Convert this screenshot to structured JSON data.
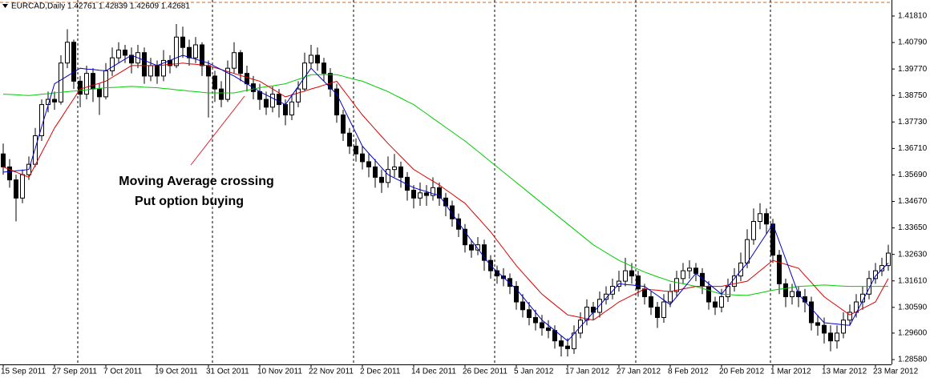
{
  "chart_data": {
    "type": "candlestick",
    "title": "EURCAD,Daily  1.42761 1.42839 1.42609 1.42681",
    "annotations": [
      "Moving Average crossing",
      "Put option buying"
    ],
    "annotation_color": "#e0262c",
    "up_color": "#ffffff",
    "down_color": "#000000",
    "categories": [
      "15 Sep 2011",
      null,
      null,
      null,
      null,
      null,
      null,
      null,
      "27 Sep 2011",
      null,
      null,
      null,
      null,
      null,
      null,
      null,
      "7 Oct 2011",
      null,
      null,
      null,
      null,
      null,
      null,
      null,
      "19 Oct 2011",
      null,
      null,
      null,
      null,
      null,
      null,
      null,
      "31 Oct 2011",
      null,
      null,
      null,
      null,
      null,
      null,
      null,
      "10 Nov 2011",
      null,
      null,
      null,
      null,
      null,
      null,
      null,
      "22 Nov 2011",
      null,
      null,
      null,
      null,
      null,
      null,
      null,
      "2 Dec 2011",
      null,
      null,
      null,
      null,
      null,
      null,
      null,
      "14 Dec 2011",
      null,
      null,
      null,
      null,
      null,
      null,
      null,
      "26 Dec 2011",
      null,
      null,
      null,
      null,
      null,
      null,
      null,
      "5 Jan 2012",
      null,
      null,
      null,
      null,
      null,
      null,
      null,
      "17 Jan 2012",
      null,
      null,
      null,
      null,
      null,
      null,
      null,
      "27 Jan 2012",
      null,
      null,
      null,
      null,
      null,
      null,
      null,
      "8 Feb 2012",
      null,
      null,
      null,
      null,
      null,
      null,
      null,
      "20 Feb 2012",
      null,
      null,
      null,
      null,
      null,
      null,
      null,
      "1 Mar 2012",
      null,
      null,
      null,
      null,
      null,
      null,
      null,
      "13 Mar 2012",
      null,
      null,
      null,
      null,
      null,
      null,
      null,
      "23 Mar 2012",
      null,
      null
    ],
    "open": [
      1.365,
      1.36,
      1.355,
      1.348,
      1.357,
      1.361,
      1.372,
      1.384,
      1.386,
      1.385,
      1.4,
      1.408,
      1.393,
      1.388,
      1.396,
      1.39,
      1.387,
      1.397,
      1.402,
      1.405,
      1.403,
      1.4,
      1.404,
      1.395,
      1.399,
      1.395,
      1.401,
      1.399,
      1.41,
      1.406,
      1.402,
      1.407,
      1.399,
      1.395,
      1.39,
      1.386,
      1.398,
      1.404,
      1.396,
      1.392,
      1.389,
      1.386,
      1.383,
      1.388,
      1.384,
      1.38,
      1.385,
      1.39,
      1.4,
      1.403,
      1.4,
      1.396,
      1.39,
      1.38,
      1.373,
      1.368,
      1.365,
      1.362,
      1.36,
      1.356,
      1.354,
      1.359,
      1.36,
      1.356,
      1.351,
      1.348,
      1.35,
      1.349,
      1.352,
      1.348,
      1.345,
      1.34,
      1.336,
      1.33,
      1.328,
      1.33,
      1.324,
      1.32,
      1.318,
      1.317,
      1.314,
      1.308,
      1.305,
      1.302,
      1.3,
      1.298,
      1.297,
      1.293,
      1.291,
      1.29,
      1.296,
      1.301,
      1.306,
      1.304,
      1.309,
      1.311,
      1.314,
      1.316,
      1.32,
      1.318,
      1.313,
      1.31,
      1.306,
      1.302,
      1.308,
      1.312,
      1.317,
      1.32,
      1.321,
      1.319,
      1.314,
      1.308,
      1.306,
      1.31,
      1.314,
      1.318,
      1.323,
      1.332,
      1.339,
      1.342,
      1.338,
      1.326,
      1.315,
      1.31,
      1.312,
      1.31,
      1.308,
      1.3,
      1.299,
      1.296,
      1.293,
      1.296,
      1.301,
      1.304,
      1.308,
      1.311,
      1.317,
      1.32,
      1.322
    ],
    "high": [
      1.369,
      1.363,
      1.357,
      1.359,
      1.364,
      1.375,
      1.386,
      1.389,
      1.389,
      1.403,
      1.413,
      1.409,
      1.395,
      1.399,
      1.398,
      1.392,
      1.4,
      1.406,
      1.408,
      1.407,
      1.406,
      1.407,
      1.406,
      1.402,
      1.401,
      1.405,
      1.403,
      1.415,
      1.414,
      1.409,
      1.41,
      1.408,
      1.401,
      1.397,
      1.393,
      1.401,
      1.408,
      1.405,
      1.399,
      1.395,
      1.392,
      1.389,
      1.391,
      1.39,
      1.386,
      1.388,
      1.393,
      1.404,
      1.407,
      1.406,
      1.402,
      1.398,
      1.392,
      1.382,
      1.375,
      1.371,
      1.368,
      1.365,
      1.363,
      1.359,
      1.364,
      1.365,
      1.362,
      1.358,
      1.353,
      1.354,
      1.353,
      1.356,
      1.354,
      1.35,
      1.347,
      1.342,
      1.338,
      1.332,
      1.333,
      1.332,
      1.326,
      1.322,
      1.321,
      1.319,
      1.316,
      1.311,
      1.308,
      1.305,
      1.303,
      1.301,
      1.299,
      1.295,
      1.294,
      1.299,
      1.304,
      1.309,
      1.308,
      1.312,
      1.314,
      1.317,
      1.32,
      1.325,
      1.323,
      1.32,
      1.315,
      1.312,
      1.308,
      1.311,
      1.315,
      1.32,
      1.323,
      1.324,
      1.323,
      1.321,
      1.316,
      1.31,
      1.313,
      1.317,
      1.321,
      1.327,
      1.336,
      1.344,
      1.346,
      1.344,
      1.34,
      1.328,
      1.317,
      1.315,
      1.314,
      1.313,
      1.31,
      1.303,
      1.302,
      1.299,
      1.299,
      1.304,
      1.307,
      1.311,
      1.314,
      1.32,
      1.323,
      1.325,
      1.33
    ],
    "low": [
      1.357,
      1.352,
      1.339,
      1.346,
      1.355,
      1.36,
      1.37,
      1.381,
      1.382,
      1.384,
      1.398,
      1.39,
      1.383,
      1.386,
      1.385,
      1.38,
      1.386,
      1.395,
      1.4,
      1.4,
      1.396,
      1.398,
      1.392,
      1.393,
      1.392,
      1.393,
      1.396,
      1.398,
      1.402,
      1.399,
      1.4,
      1.395,
      1.379,
      1.385,
      1.383,
      1.385,
      1.396,
      1.393,
      1.389,
      1.386,
      1.382,
      1.38,
      1.381,
      1.379,
      1.376,
      1.378,
      1.383,
      1.389,
      1.398,
      1.397,
      1.393,
      1.387,
      1.377,
      1.37,
      1.365,
      1.362,
      1.359,
      1.356,
      1.352,
      1.35,
      1.352,
      1.356,
      1.352,
      1.347,
      1.344,
      1.345,
      1.345,
      1.347,
      1.345,
      1.341,
      1.337,
      1.333,
      1.327,
      1.325,
      1.326,
      1.32,
      1.317,
      1.315,
      1.314,
      1.311,
      1.305,
      1.302,
      1.299,
      1.297,
      1.295,
      1.294,
      1.29,
      1.287,
      1.287,
      1.288,
      1.294,
      1.299,
      1.301,
      1.302,
      1.307,
      1.309,
      1.312,
      1.314,
      1.315,
      1.31,
      1.307,
      1.303,
      1.298,
      1.3,
      1.306,
      1.31,
      1.315,
      1.317,
      1.316,
      1.311,
      1.305,
      1.303,
      1.304,
      1.308,
      1.312,
      1.316,
      1.321,
      1.33,
      1.336,
      1.334,
      1.323,
      1.311,
      1.306,
      1.307,
      1.306,
      1.304,
      1.297,
      1.295,
      1.292,
      1.289,
      1.29,
      1.294,
      1.299,
      1.302,
      1.305,
      1.309,
      1.315,
      1.318,
      1.32
    ],
    "close": [
      1.36,
      1.355,
      1.348,
      1.357,
      1.361,
      1.372,
      1.384,
      1.386,
      1.385,
      1.4,
      1.408,
      1.393,
      1.388,
      1.396,
      1.39,
      1.387,
      1.397,
      1.402,
      1.405,
      1.403,
      1.4,
      1.404,
      1.395,
      1.399,
      1.395,
      1.401,
      1.399,
      1.41,
      1.406,
      1.402,
      1.407,
      1.399,
      1.395,
      1.39,
      1.386,
      1.398,
      1.404,
      1.396,
      1.392,
      1.389,
      1.386,
      1.383,
      1.388,
      1.384,
      1.38,
      1.385,
      1.39,
      1.4,
      1.403,
      1.4,
      1.396,
      1.39,
      1.38,
      1.373,
      1.368,
      1.365,
      1.362,
      1.36,
      1.356,
      1.354,
      1.359,
      1.36,
      1.356,
      1.351,
      1.348,
      1.35,
      1.349,
      1.352,
      1.348,
      1.345,
      1.34,
      1.336,
      1.33,
      1.328,
      1.33,
      1.324,
      1.32,
      1.318,
      1.317,
      1.314,
      1.308,
      1.305,
      1.302,
      1.3,
      1.298,
      1.297,
      1.293,
      1.291,
      1.29,
      1.296,
      1.301,
      1.306,
      1.304,
      1.309,
      1.311,
      1.314,
      1.316,
      1.32,
      1.318,
      1.313,
      1.31,
      1.306,
      1.302,
      1.308,
      1.312,
      1.317,
      1.32,
      1.321,
      1.319,
      1.314,
      1.308,
      1.306,
      1.31,
      1.314,
      1.318,
      1.323,
      1.332,
      1.339,
      1.342,
      1.338,
      1.326,
      1.315,
      1.31,
      1.312,
      1.31,
      1.308,
      1.3,
      1.299,
      1.296,
      1.293,
      1.296,
      1.301,
      1.304,
      1.308,
      1.311,
      1.317,
      1.32,
      1.322,
      1.3268
    ],
    "series": [
      {
        "color": "#00cc00",
        "values": [
          1.388,
          1.3879,
          1.3878,
          1.3876,
          1.3875,
          1.3877,
          1.388,
          1.3882,
          1.3885,
          1.3887,
          1.389,
          1.3892,
          1.3895,
          1.3897,
          1.39,
          1.3902,
          1.3905,
          1.3906,
          1.3907,
          1.3909,
          1.391,
          1.3909,
          1.3907,
          1.3906,
          1.3905,
          1.3902,
          1.39,
          1.3897,
          1.3895,
          1.3892,
          1.389,
          1.3887,
          1.3885,
          1.3885,
          1.3885,
          1.3885,
          1.3885,
          1.389,
          1.3895,
          1.39,
          1.3905,
          1.3909,
          1.3912,
          1.3916,
          1.392,
          1.3929,
          1.3937,
          1.3946,
          1.3955,
          1.3955,
          1.3955,
          1.3955,
          1.3955,
          1.3949,
          1.3942,
          1.3936,
          1.393,
          1.392,
          1.391,
          1.39,
          1.389,
          1.3877,
          1.3865,
          1.3852,
          1.384,
          1.3822,
          1.3805,
          1.3787,
          1.377,
          1.3752,
          1.3735,
          1.3717,
          1.37,
          1.368,
          1.366,
          1.364,
          1.362,
          1.36,
          1.358,
          1.356,
          1.354,
          1.352,
          1.35,
          1.348,
          1.346,
          1.344,
          1.342,
          1.34,
          1.338,
          1.336,
          1.334,
          1.332,
          1.33,
          1.3285,
          1.327,
          1.3255,
          1.324,
          1.3229,
          1.3217,
          1.3206,
          1.3195,
          1.3186,
          1.3177,
          1.3169,
          1.316,
          1.3155,
          1.315,
          1.3145,
          1.314,
          1.3132,
          1.3125,
          1.3117,
          1.311,
          1.3109,
          1.3107,
          1.3106,
          1.3105,
          1.311,
          1.3115,
          1.312,
          1.3125,
          1.3129,
          1.3132,
          1.3136,
          1.314,
          1.3141,
          1.3142,
          1.3144,
          1.3145,
          1.3144,
          1.3142,
          1.3141,
          1.314,
          1.314,
          1.314,
          1.314,
          1.314,
          1.314,
          1.314
        ]
      },
      {
        "color": "#dd0000",
        "values": [
          1.36,
          1.359,
          1.358,
          1.357,
          1.356,
          1.3607,
          1.3655,
          1.3702,
          1.375,
          1.3787,
          1.3825,
          1.3862,
          1.39,
          1.3907,
          1.3915,
          1.3922,
          1.393,
          1.3945,
          1.396,
          1.3975,
          1.399,
          1.399,
          1.399,
          1.399,
          1.399,
          1.3992,
          1.3995,
          1.3997,
          1.4,
          1.3997,
          1.3995,
          1.3992,
          1.399,
          1.3982,
          1.3975,
          1.3967,
          1.396,
          1.3952,
          1.3945,
          1.3937,
          1.393,
          1.3915,
          1.39,
          1.3885,
          1.387,
          1.3877,
          1.3885,
          1.3892,
          1.39,
          1.3907,
          1.3915,
          1.3922,
          1.393,
          1.3897,
          1.3865,
          1.3832,
          1.38,
          1.3772,
          1.3745,
          1.3717,
          1.369,
          1.3665,
          1.364,
          1.3615,
          1.359,
          1.3575,
          1.356,
          1.3545,
          1.353,
          1.3512,
          1.3495,
          1.3477,
          1.346,
          1.3432,
          1.3405,
          1.3377,
          1.335,
          1.3317,
          1.3285,
          1.3252,
          1.322,
          1.3192,
          1.3165,
          1.3137,
          1.311,
          1.309,
          1.307,
          1.305,
          1.303,
          1.3025,
          1.302,
          1.3015,
          1.301,
          1.3027,
          1.3045,
          1.3062,
          1.308,
          1.3092,
          1.3105,
          1.3117,
          1.313,
          1.3127,
          1.3125,
          1.3122,
          1.312,
          1.3125,
          1.313,
          1.3135,
          1.314,
          1.314,
          1.314,
          1.314,
          1.314,
          1.3145,
          1.315,
          1.3155,
          1.316,
          1.318,
          1.32,
          1.322,
          1.324,
          1.3232,
          1.3225,
          1.3217,
          1.321,
          1.3182,
          1.3155,
          1.3127,
          1.31,
          1.3082,
          1.3065,
          1.3047,
          1.303,
          1.3042,
          1.3055,
          1.3067,
          1.308,
          1.3125,
          1.317
        ]
      },
      {
        "color": "#0000cc",
        "values": [
          1.358,
          1.3582,
          1.3585,
          1.3587,
          1.359,
          1.3672,
          1.3755,
          1.3837,
          1.392,
          1.3935,
          1.395,
          1.3965,
          1.398,
          1.3977,
          1.3975,
          1.3972,
          1.397,
          1.3985,
          1.4,
          1.4015,
          1.403,
          1.402,
          1.401,
          1.4,
          1.399,
          1.4,
          1.401,
          1.402,
          1.403,
          1.4022,
          1.4015,
          1.4007,
          1.4,
          1.3987,
          1.3975,
          1.3962,
          1.395,
          1.3935,
          1.392,
          1.3905,
          1.389,
          1.3877,
          1.3865,
          1.3852,
          1.384,
          1.3875,
          1.391,
          1.3945,
          1.398,
          1.3955,
          1.393,
          1.3905,
          1.388,
          1.383,
          1.378,
          1.373,
          1.368,
          1.3652,
          1.3625,
          1.3597,
          1.357,
          1.3557,
          1.3545,
          1.3532,
          1.352,
          1.3512,
          1.3505,
          1.3497,
          1.349,
          1.3455,
          1.342,
          1.3385,
          1.335,
          1.3317,
          1.3285,
          1.3252,
          1.322,
          1.3197,
          1.3175,
          1.3152,
          1.313,
          1.31,
          1.307,
          1.304,
          1.301,
          1.299,
          1.297,
          1.295,
          1.293,
          1.2957,
          1.2985,
          1.3012,
          1.304,
          1.3067,
          1.3095,
          1.3122,
          1.315,
          1.3147,
          1.3145,
          1.3142,
          1.314,
          1.3122,
          1.3105,
          1.3087,
          1.307,
          1.31,
          1.313,
          1.316,
          1.319,
          1.317,
          1.315,
          1.313,
          1.311,
          1.314,
          1.317,
          1.32,
          1.323,
          1.3267,
          1.3305,
          1.3342,
          1.338,
          1.3312,
          1.3245,
          1.3177,
          1.311,
          1.3082,
          1.3055,
          1.3027,
          1.3,
          1.2997,
          1.2995,
          1.2992,
          1.299,
          1.3037,
          1.3085,
          1.3132,
          1.318,
          1.3205,
          1.323
        ]
      }
    ],
    "ylim": [
      1.28395,
      1.42427
    ],
    "yticks": [
      {
        "value": 1.4181,
        "label": "1.41810"
      },
      {
        "value": 1.4079,
        "label": "1.40790"
      },
      {
        "value": 1.3977,
        "label": "1.39770"
      },
      {
        "value": 1.3875,
        "label": "1.38750"
      },
      {
        "value": 1.3773,
        "label": "1.37730"
      },
      {
        "value": 1.3671,
        "label": "1.36710"
      },
      {
        "value": 1.3569,
        "label": "1.35690"
      },
      {
        "value": 1.3467,
        "label": "1.34670"
      },
      {
        "value": 1.3365,
        "label": "1.33650"
      },
      {
        "value": 1.3263,
        "label": "1.32630"
      },
      {
        "value": 1.3161,
        "label": "1.31610"
      },
      {
        "value": 1.3059,
        "label": "1.30590"
      },
      {
        "value": 1.296,
        "label": "1.29600"
      },
      {
        "value": 1.2858,
        "label": "1.28580"
      }
    ]
  }
}
